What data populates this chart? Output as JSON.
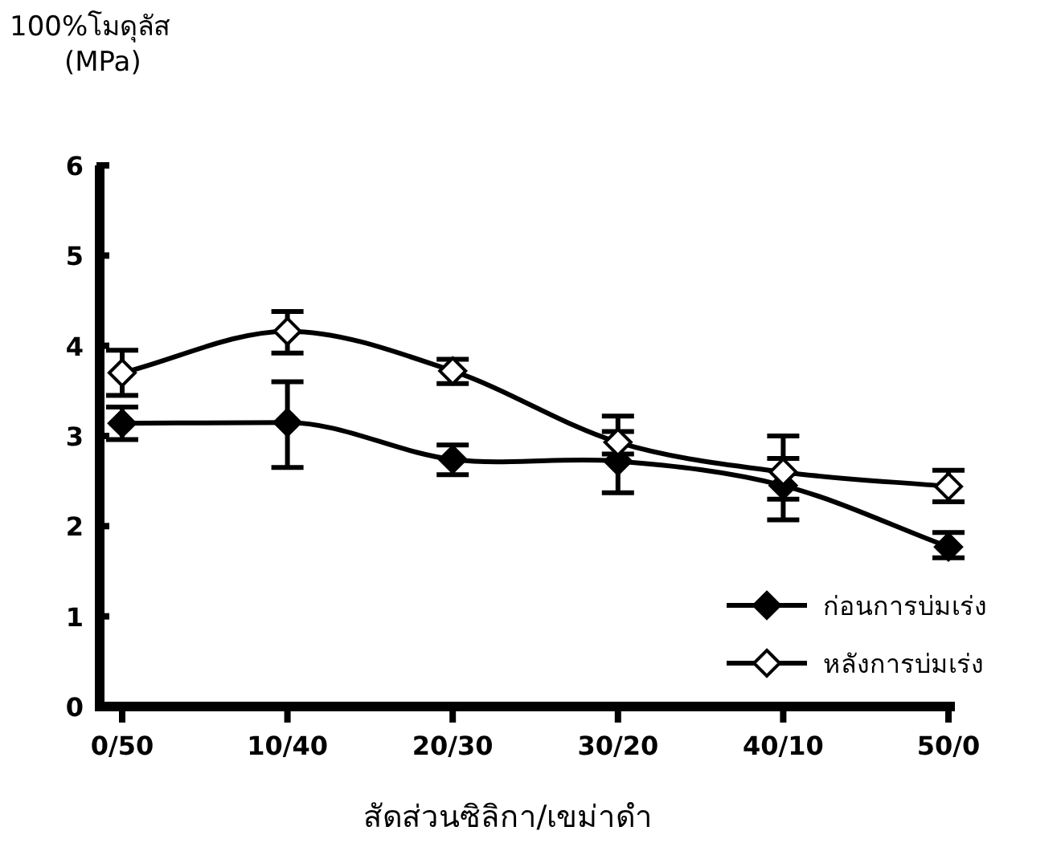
{
  "chart_data": {
    "type": "line",
    "xlabel": "สัดส่วนซิลิกา/เขม่าดำ",
    "ylabel": "100%โมดุลัส (MPa)",
    "categories": [
      "0/50",
      "10/40",
      "20/30",
      "30/20",
      "40/10",
      "50/0"
    ],
    "ylim": [
      0,
      6
    ],
    "yticks": [
      0,
      1,
      2,
      3,
      4,
      5,
      6
    ],
    "legend": "bottom right",
    "marker": "diamond",
    "line_style": "solid",
    "grid": false,
    "series": [
      {
        "name": "ก่อนการบ่มเร่ง",
        "color": "#000000",
        "values": [
          3.14,
          3.15,
          2.74,
          2.72,
          2.45,
          1.77
        ],
        "errors": [
          [
            2.96,
            3.32
          ],
          [
            2.65,
            3.6
          ],
          [
            2.57,
            2.9
          ],
          [
            2.37,
            3.05
          ],
          [
            2.07,
            2.75
          ],
          [
            1.65,
            1.93
          ]
        ]
      },
      {
        "name": "หลังการบ่มเร่ง",
        "color": "#000000",
        "values": [
          3.7,
          4.16,
          3.72,
          2.93,
          2.6,
          2.44
        ],
        "errors": [
          [
            3.45,
            3.95
          ],
          [
            3.92,
            4.38
          ],
          [
            3.58,
            3.85
          ],
          [
            2.8,
            3.22
          ],
          [
            2.3,
            3.0
          ],
          [
            2.27,
            2.62
          ]
        ]
      }
    ]
  }
}
